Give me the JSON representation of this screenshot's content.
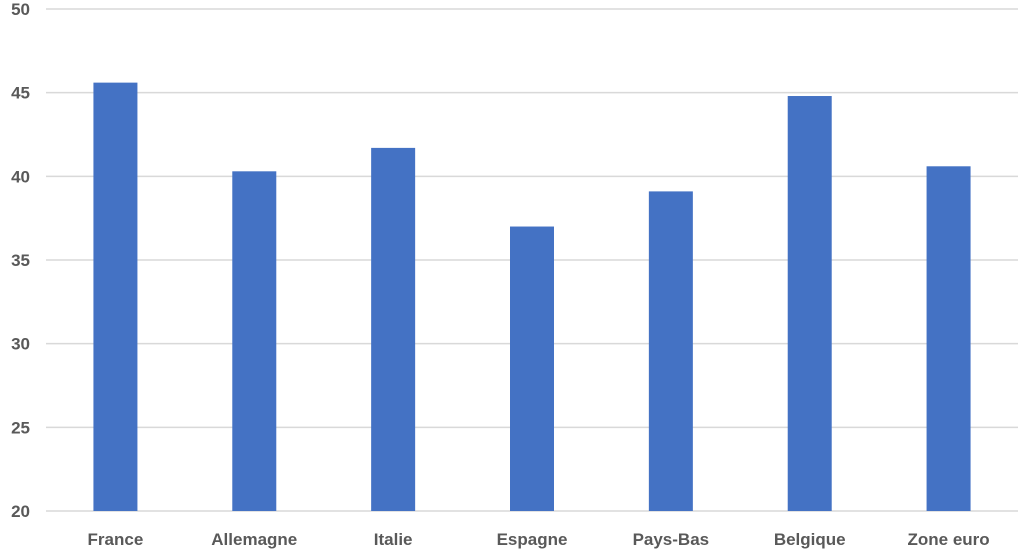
{
  "chart_data": {
    "type": "bar",
    "categories": [
      "France",
      "Allemagne",
      "Italie",
      "Espagne",
      "Pays-Bas",
      "Belgique",
      "Zone euro"
    ],
    "values": [
      45.6,
      40.3,
      41.7,
      37.0,
      39.1,
      44.8,
      40.6
    ],
    "title": "",
    "xlabel": "",
    "ylabel": "",
    "ylim": [
      20,
      50
    ],
    "yticks": [
      20,
      25,
      30,
      35,
      40,
      45,
      50
    ],
    "grid": true,
    "legend": "none",
    "bar_color": "#4472c4",
    "grid_color": "#d9d9d9",
    "label_color": "#595959"
  }
}
